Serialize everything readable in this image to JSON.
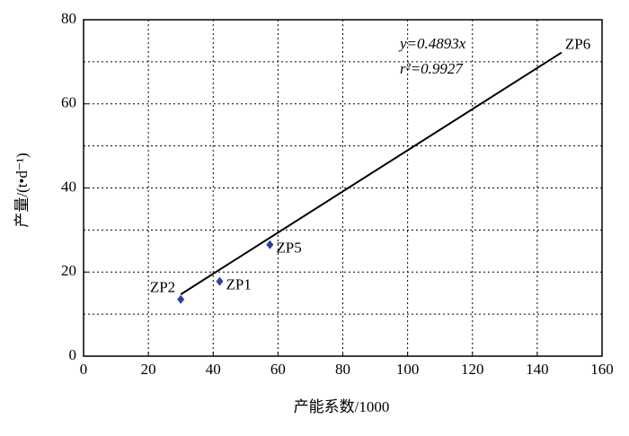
{
  "chart_data": {
    "type": "scatter",
    "x_label": "产能系数/1000",
    "y_label": "产量/(t•d⁻¹)",
    "xlim": [
      0,
      160
    ],
    "xticks": [
      0,
      20,
      40,
      60,
      80,
      100,
      120,
      140,
      160
    ],
    "ylim": [
      0,
      80
    ],
    "yticks": [
      0,
      20,
      40,
      60,
      80
    ],
    "y_minor_grid": [
      10,
      30,
      50,
      70
    ],
    "grid": true,
    "points": {
      "names": [
        "ZP2",
        "ZP1",
        "ZP5"
      ],
      "x": [
        30,
        42,
        57.5
      ],
      "y": [
        13.5,
        17.8,
        26.5
      ],
      "color": "#2e3f9e"
    },
    "fit": {
      "name": "ZP6",
      "x": [
        30,
        147.5
      ],
      "y": [
        14.7,
        72.2
      ],
      "color": "#000000"
    },
    "annotations": [
      "y=0.4893x",
      "r²=0.9927"
    ]
  }
}
